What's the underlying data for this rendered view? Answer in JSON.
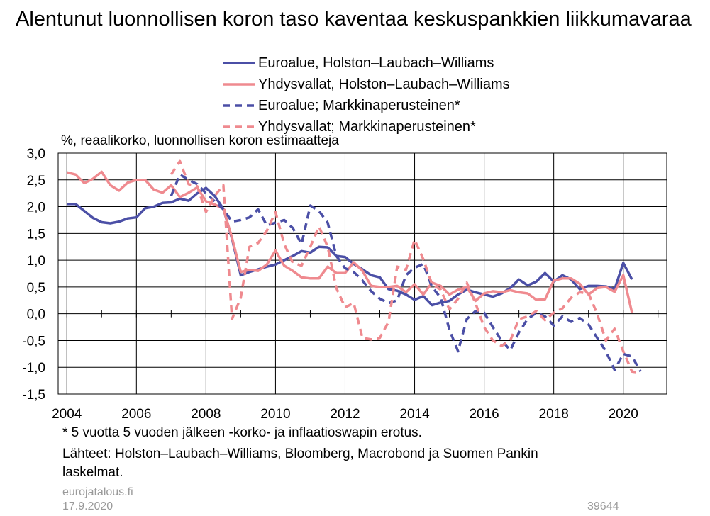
{
  "title": "Alentunut luonnollisen koron taso kaventaa keskuspankkien liikkumavaraa",
  "footnote": "* 5 vuotta 5 vuoden jälkeen -korko- ja inflaatioswapin erotus.",
  "sources_line1": "Lähteet: Holston–Laubach–Williams, Bloomberg, Macrobond ja Suomen Pankin",
  "sources_line2": "laskelmat.",
  "site": "eurojatalous.fi",
  "date": "17.9.2020",
  "chart_code": "39644",
  "colors": {
    "euro": "#4b4fa6",
    "us": "#ef8a8f"
  },
  "chart_data": {
    "type": "line",
    "ylabel": "%, reaalikorko, luonnollisen koron estimaatteja",
    "ylim": [
      -1.5,
      3.0
    ],
    "yticks": [
      "3,0",
      "2,5",
      "2,0",
      "1,5",
      "1,0",
      "0,5",
      "0,0",
      "-0,5",
      "-1,0",
      "-1,5"
    ],
    "ytick_values": [
      3.0,
      2.5,
      2.0,
      1.5,
      1.0,
      0.5,
      0.0,
      -0.5,
      -1.0,
      -1.5
    ],
    "xlim": [
      2003.75,
      2021.25
    ],
    "xticks": [
      "2004",
      "2006",
      "2008",
      "2010",
      "2012",
      "2014",
      "2016",
      "2018",
      "2020"
    ],
    "xtick_values": [
      2004,
      2006,
      2008,
      2010,
      2012,
      2014,
      2016,
      2018,
      2020
    ],
    "grid": true,
    "series": [
      {
        "name": "Euroalue, Holston–Laubach–Williams",
        "color": "#4b4fa6",
        "dash": false,
        "points": [
          [
            2004.0,
            2.05
          ],
          [
            2004.25,
            2.05
          ],
          [
            2004.5,
            1.92
          ],
          [
            2004.75,
            1.79
          ],
          [
            2005.0,
            1.71
          ],
          [
            2005.25,
            1.69
          ],
          [
            2005.5,
            1.72
          ],
          [
            2005.75,
            1.78
          ],
          [
            2006.0,
            1.8
          ],
          [
            2006.25,
            1.97
          ],
          [
            2006.5,
            2.0
          ],
          [
            2006.75,
            2.07
          ],
          [
            2007.0,
            2.08
          ],
          [
            2007.25,
            2.15
          ],
          [
            2007.5,
            2.11
          ],
          [
            2007.75,
            2.25
          ],
          [
            2008.0,
            2.35
          ],
          [
            2008.25,
            2.2
          ],
          [
            2008.5,
            1.96
          ],
          [
            2008.75,
            1.4
          ],
          [
            2009.0,
            0.72
          ],
          [
            2009.25,
            0.78
          ],
          [
            2009.5,
            0.83
          ],
          [
            2009.75,
            0.88
          ],
          [
            2010.0,
            0.92
          ],
          [
            2010.25,
            1.0
          ],
          [
            2010.5,
            1.08
          ],
          [
            2010.75,
            1.17
          ],
          [
            2011.0,
            1.14
          ],
          [
            2011.25,
            1.25
          ],
          [
            2011.5,
            1.24
          ],
          [
            2011.75,
            1.08
          ],
          [
            2012.0,
            1.06
          ],
          [
            2012.25,
            0.93
          ],
          [
            2012.5,
            0.83
          ],
          [
            2012.75,
            0.72
          ],
          [
            2013.0,
            0.68
          ],
          [
            2013.25,
            0.46
          ],
          [
            2013.5,
            0.43
          ],
          [
            2013.75,
            0.36
          ],
          [
            2014.0,
            0.26
          ],
          [
            2014.25,
            0.33
          ],
          [
            2014.5,
            0.16
          ],
          [
            2014.75,
            0.21
          ],
          [
            2015.0,
            0.24
          ],
          [
            2015.25,
            0.36
          ],
          [
            2015.5,
            0.45
          ],
          [
            2015.75,
            0.4
          ],
          [
            2016.0,
            0.36
          ],
          [
            2016.25,
            0.32
          ],
          [
            2016.5,
            0.38
          ],
          [
            2016.75,
            0.48
          ],
          [
            2017.0,
            0.64
          ],
          [
            2017.25,
            0.53
          ],
          [
            2017.5,
            0.6
          ],
          [
            2017.75,
            0.76
          ],
          [
            2018.0,
            0.6
          ],
          [
            2018.25,
            0.72
          ],
          [
            2018.5,
            0.64
          ],
          [
            2018.75,
            0.46
          ],
          [
            2019.0,
            0.52
          ],
          [
            2019.25,
            0.52
          ],
          [
            2019.5,
            0.51
          ],
          [
            2019.75,
            0.46
          ],
          [
            2020.0,
            0.95
          ],
          [
            2020.25,
            0.64
          ]
        ]
      },
      {
        "name": "Yhdysvallat, Holston–Laubach–Williams",
        "color": "#ef8a8f",
        "dash": false,
        "points": [
          [
            2004.0,
            2.64
          ],
          [
            2004.25,
            2.6
          ],
          [
            2004.5,
            2.44
          ],
          [
            2004.75,
            2.52
          ],
          [
            2005.0,
            2.65
          ],
          [
            2005.25,
            2.4
          ],
          [
            2005.5,
            2.3
          ],
          [
            2005.75,
            2.45
          ],
          [
            2006.0,
            2.5
          ],
          [
            2006.25,
            2.5
          ],
          [
            2006.5,
            2.32
          ],
          [
            2006.75,
            2.26
          ],
          [
            2007.0,
            2.4
          ],
          [
            2007.25,
            2.18
          ],
          [
            2007.5,
            2.26
          ],
          [
            2007.75,
            2.36
          ],
          [
            2008.0,
            2.1
          ],
          [
            2008.25,
            2.04
          ],
          [
            2008.5,
            1.96
          ],
          [
            2008.75,
            1.42
          ],
          [
            2009.0,
            0.78
          ],
          [
            2009.25,
            0.82
          ],
          [
            2009.5,
            0.8
          ],
          [
            2009.75,
            0.92
          ],
          [
            2010.0,
            1.18
          ],
          [
            2010.25,
            0.9
          ],
          [
            2010.5,
            0.8
          ],
          [
            2010.75,
            0.68
          ],
          [
            2011.0,
            0.66
          ],
          [
            2011.25,
            0.66
          ],
          [
            2011.5,
            0.88
          ],
          [
            2011.75,
            0.76
          ],
          [
            2012.0,
            0.76
          ],
          [
            2012.25,
            0.96
          ],
          [
            2012.5,
            0.8
          ],
          [
            2012.75,
            0.52
          ],
          [
            2013.0,
            0.5
          ],
          [
            2013.25,
            0.5
          ],
          [
            2013.5,
            0.52
          ],
          [
            2013.75,
            0.4
          ],
          [
            2014.0,
            0.55
          ],
          [
            2014.25,
            0.36
          ],
          [
            2014.5,
            0.58
          ],
          [
            2014.75,
            0.52
          ],
          [
            2015.0,
            0.36
          ],
          [
            2015.25,
            0.45
          ],
          [
            2015.5,
            0.5
          ],
          [
            2015.75,
            0.24
          ],
          [
            2016.0,
            0.38
          ],
          [
            2016.25,
            0.42
          ],
          [
            2016.5,
            0.4
          ],
          [
            2016.75,
            0.44
          ],
          [
            2017.0,
            0.4
          ],
          [
            2017.25,
            0.38
          ],
          [
            2017.5,
            0.26
          ],
          [
            2017.75,
            0.27
          ],
          [
            2018.0,
            0.62
          ],
          [
            2018.25,
            0.66
          ],
          [
            2018.5,
            0.66
          ],
          [
            2018.75,
            0.56
          ],
          [
            2019.0,
            0.36
          ],
          [
            2019.25,
            0.48
          ],
          [
            2019.5,
            0.5
          ],
          [
            2019.75,
            0.41
          ],
          [
            2020.0,
            0.72
          ],
          [
            2020.25,
            0.02
          ]
        ]
      },
      {
        "name": "Euroalue; Markkinaperusteinen*",
        "color": "#4b4fa6",
        "dash": true,
        "points": [
          [
            2007.0,
            2.2
          ],
          [
            2007.25,
            2.6
          ],
          [
            2007.5,
            2.5
          ],
          [
            2007.75,
            2.42
          ],
          [
            2008.0,
            2.25
          ],
          [
            2008.25,
            2.1
          ],
          [
            2008.5,
            1.95
          ],
          [
            2008.75,
            1.72
          ],
          [
            2009.0,
            1.75
          ],
          [
            2009.25,
            1.8
          ],
          [
            2009.5,
            1.95
          ],
          [
            2009.75,
            1.65
          ],
          [
            2010.0,
            1.7
          ],
          [
            2010.25,
            1.75
          ],
          [
            2010.5,
            1.6
          ],
          [
            2010.75,
            1.3
          ],
          [
            2011.0,
            2.02
          ],
          [
            2011.25,
            1.92
          ],
          [
            2011.5,
            1.7
          ],
          [
            2011.75,
            1.08
          ],
          [
            2012.0,
            0.85
          ],
          [
            2012.25,
            0.78
          ],
          [
            2012.5,
            0.62
          ],
          [
            2012.75,
            0.42
          ],
          [
            2013.0,
            0.28
          ],
          [
            2013.25,
            0.2
          ],
          [
            2013.5,
            0.25
          ],
          [
            2013.75,
            0.72
          ],
          [
            2014.0,
            0.86
          ],
          [
            2014.25,
            0.93
          ],
          [
            2014.5,
            0.5
          ],
          [
            2014.75,
            0.3
          ],
          [
            2015.0,
            -0.3
          ],
          [
            2015.25,
            -0.7
          ],
          [
            2015.5,
            -0.1
          ],
          [
            2015.75,
            0.05
          ],
          [
            2016.0,
            0.02
          ],
          [
            2016.25,
            -0.25
          ],
          [
            2016.5,
            -0.5
          ],
          [
            2016.75,
            -0.68
          ],
          [
            2017.0,
            -0.35
          ],
          [
            2017.25,
            -0.1
          ],
          [
            2017.5,
            0.02
          ],
          [
            2017.75,
            -0.05
          ],
          [
            2018.0,
            -0.22
          ],
          [
            2018.25,
            -0.05
          ],
          [
            2018.5,
            -0.15
          ],
          [
            2018.75,
            -0.08
          ],
          [
            2019.0,
            -0.2
          ],
          [
            2019.25,
            -0.45
          ],
          [
            2019.5,
            -0.7
          ],
          [
            2019.75,
            -1.05
          ],
          [
            2020.0,
            -0.75
          ],
          [
            2020.25,
            -0.8
          ],
          [
            2020.5,
            -1.08
          ]
        ]
      },
      {
        "name": "Yhdysvallat; Markkinaperusteinen*",
        "color": "#ef8a8f",
        "dash": true,
        "points": [
          [
            2007.0,
            2.6
          ],
          [
            2007.25,
            2.85
          ],
          [
            2007.5,
            2.42
          ],
          [
            2007.75,
            2.38
          ],
          [
            2008.0,
            1.9
          ],
          [
            2008.25,
            2.2
          ],
          [
            2008.5,
            2.4
          ],
          [
            2008.75,
            -0.1
          ],
          [
            2009.0,
            0.3
          ],
          [
            2009.25,
            1.25
          ],
          [
            2009.5,
            1.32
          ],
          [
            2009.75,
            1.55
          ],
          [
            2010.0,
            1.9
          ],
          [
            2010.25,
            1.3
          ],
          [
            2010.5,
            0.95
          ],
          [
            2010.75,
            0.9
          ],
          [
            2011.0,
            1.25
          ],
          [
            2011.25,
            1.63
          ],
          [
            2011.5,
            1.25
          ],
          [
            2011.75,
            0.48
          ],
          [
            2012.0,
            0.12
          ],
          [
            2012.25,
            0.2
          ],
          [
            2012.5,
            -0.45
          ],
          [
            2012.75,
            -0.48
          ],
          [
            2013.0,
            -0.45
          ],
          [
            2013.25,
            -0.15
          ],
          [
            2013.5,
            0.88
          ],
          [
            2013.75,
            0.82
          ],
          [
            2014.0,
            1.38
          ],
          [
            2014.25,
            1.02
          ],
          [
            2014.5,
            0.55
          ],
          [
            2014.75,
            0.45
          ],
          [
            2015.0,
            0.08
          ],
          [
            2015.25,
            0.28
          ],
          [
            2015.5,
            0.58
          ],
          [
            2015.75,
            0.2
          ],
          [
            2016.0,
            -0.25
          ],
          [
            2016.25,
            -0.5
          ],
          [
            2016.5,
            -0.6
          ],
          [
            2016.75,
            -0.5
          ],
          [
            2017.0,
            -0.1
          ],
          [
            2017.25,
            -0.05
          ],
          [
            2017.5,
            0.05
          ],
          [
            2017.75,
            -0.12
          ],
          [
            2018.0,
            0.02
          ],
          [
            2018.25,
            0.1
          ],
          [
            2018.5,
            0.3
          ],
          [
            2018.75,
            0.4
          ],
          [
            2019.0,
            0.38
          ],
          [
            2019.25,
            0.0
          ],
          [
            2019.5,
            -0.5
          ],
          [
            2019.75,
            -0.28
          ],
          [
            2020.0,
            -0.7
          ],
          [
            2020.25,
            -1.08
          ],
          [
            2020.5,
            -1.1
          ]
        ]
      }
    ]
  }
}
